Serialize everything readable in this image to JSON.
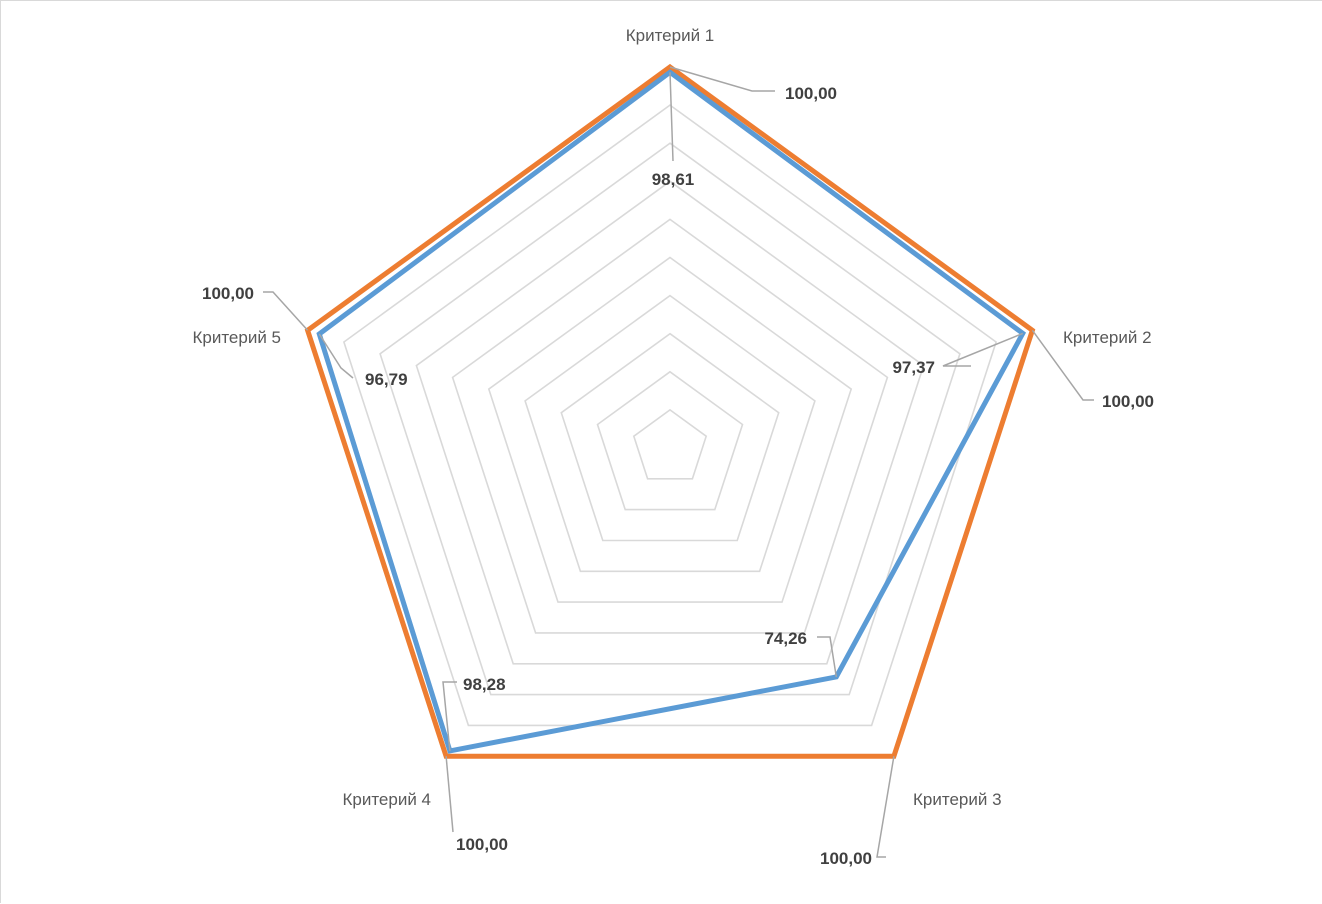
{
  "chart_data": {
    "type": "radar",
    "title": "",
    "categories": [
      "Критерий 1",
      "Критерий 2",
      "Критерий 3",
      "Критерий 4",
      "Критерий 5"
    ],
    "series": [
      {
        "values": [
          100,
          100,
          100,
          100,
          100
        ],
        "value_labels": [
          "100,00",
          "100,00",
          "100,00",
          "100,00",
          "100,00"
        ],
        "color": "#ed7d31"
      },
      {
        "values": [
          98.61,
          97.37,
          74.26,
          98.28,
          96.79
        ],
        "value_labels": [
          "98,61",
          "97,37",
          "74,26",
          "98,28",
          "96,79"
        ],
        "color": "#5b9bd5"
      }
    ],
    "rlim": [
      0,
      100
    ],
    "grid": true,
    "gridline_color": "#d9d9d9",
    "legend": "none"
  }
}
